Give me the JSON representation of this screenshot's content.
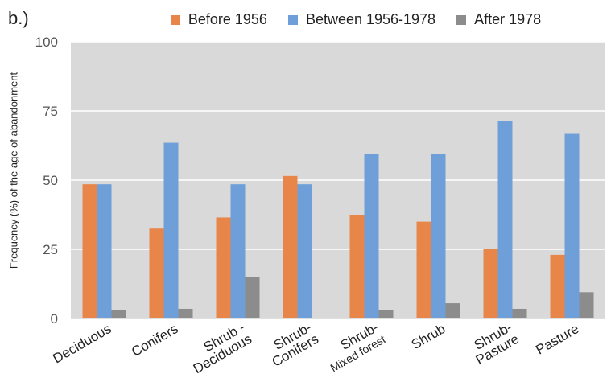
{
  "panel_label": "b.)",
  "chart_data": {
    "type": "bar",
    "title": "",
    "xlabel": "",
    "ylabel": "Frequency (%) of the age of abandonment",
    "ylim": [
      0,
      100
    ],
    "yticks": [
      0,
      25,
      50,
      75,
      100
    ],
    "grid": true,
    "legend_position": "top",
    "categories": [
      [
        "Deciduous"
      ],
      [
        "Conifers"
      ],
      [
        "Shrub -",
        "Deciduous"
      ],
      [
        "Shrub-",
        "Conifers"
      ],
      [
        "Shrub-",
        "Mixed forest"
      ],
      [
        "Shrub"
      ],
      [
        "Shrub-",
        "Pasture"
      ],
      [
        "Pasture"
      ]
    ],
    "series": [
      {
        "name": "Before 1956",
        "color": "#E8864A",
        "values": [
          48.5,
          32.5,
          36.5,
          51.5,
          37.5,
          35,
          25,
          23
        ]
      },
      {
        "name": "Between 1956-1978",
        "color": "#6F9FD8",
        "values": [
          48.5,
          63.5,
          48.5,
          48.5,
          59.5,
          59.5,
          71.5,
          67
        ]
      },
      {
        "name": "After 1978",
        "color": "#8C8C8C",
        "values": [
          3,
          3.5,
          15,
          0,
          3,
          5.5,
          3.5,
          9.5
        ]
      }
    ]
  }
}
